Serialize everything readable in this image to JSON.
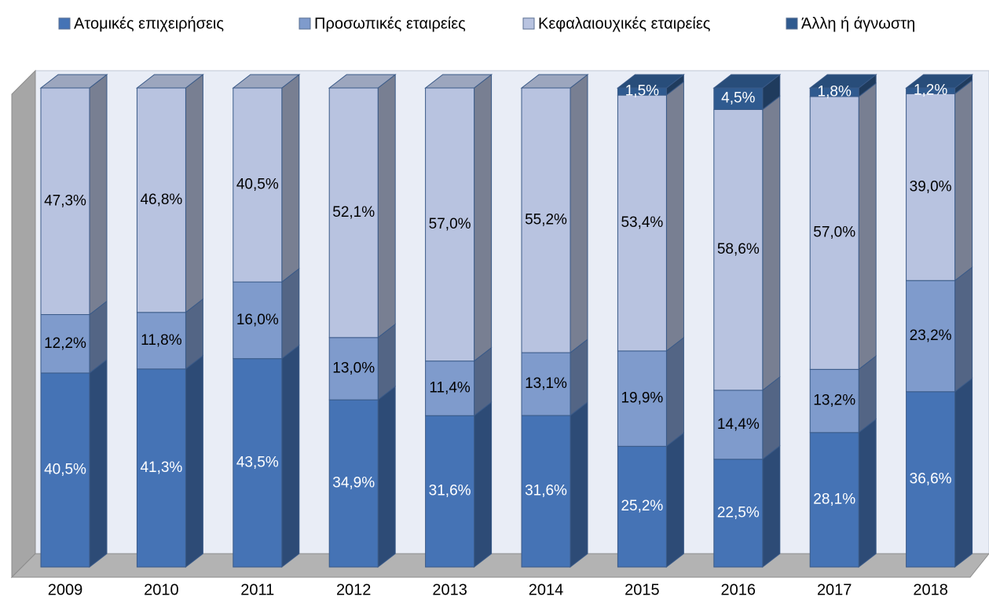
{
  "chart_data": {
    "type": "bar3d-stacked",
    "categories": [
      "2009",
      "2010",
      "2011",
      "2012",
      "2013",
      "2014",
      "2015",
      "2016",
      "2017",
      "2018"
    ],
    "series": [
      {
        "name": "Ατομικές επιχειρήσεις",
        "color": "#4573b5",
        "values": [
          40.5,
          41.3,
          43.5,
          34.9,
          31.6,
          31.6,
          25.2,
          22.5,
          28.1,
          36.6
        ],
        "value_labels": [
          "40,5%",
          "41,3%",
          "43,5%",
          "34,9%",
          "31,6%",
          "31,6%",
          "25,2%",
          "22,5%",
          "28,1%",
          "36,6%"
        ]
      },
      {
        "name": "Προσωπικές εταιρείες",
        "color": "#7f9bcc",
        "values": [
          12.2,
          11.8,
          16.0,
          13.0,
          11.4,
          13.1,
          19.9,
          14.4,
          13.2,
          23.2
        ],
        "value_labels": [
          "12,2%",
          "11,8%",
          "16,0%",
          "13,0%",
          "11,4%",
          "13,1%",
          "19,9%",
          "14,4%",
          "13,2%",
          "23,2%"
        ]
      },
      {
        "name": "Κεφαλαιουχικές εταιρείες",
        "color": "#b8c3e0",
        "values": [
          47.3,
          46.8,
          40.5,
          52.1,
          57.0,
          55.2,
          53.4,
          58.6,
          57.0,
          39.0
        ],
        "value_labels": [
          "47,3%",
          "46,8%",
          "40,5%",
          "52,1%",
          "57,0%",
          "55,2%",
          "53,4%",
          "58,6%",
          "57,0%",
          "39,0%"
        ]
      },
      {
        "name": "Άλλη ή άγνωστη",
        "color": "#2f5a8f",
        "values": [
          null,
          null,
          null,
          null,
          null,
          null,
          1.5,
          4.5,
          1.8,
          1.2
        ],
        "value_labels": [
          null,
          null,
          null,
          null,
          null,
          null,
          "1,5%",
          "4,5%",
          "1,8%",
          "1,2%"
        ]
      }
    ],
    "legend": "top"
  }
}
